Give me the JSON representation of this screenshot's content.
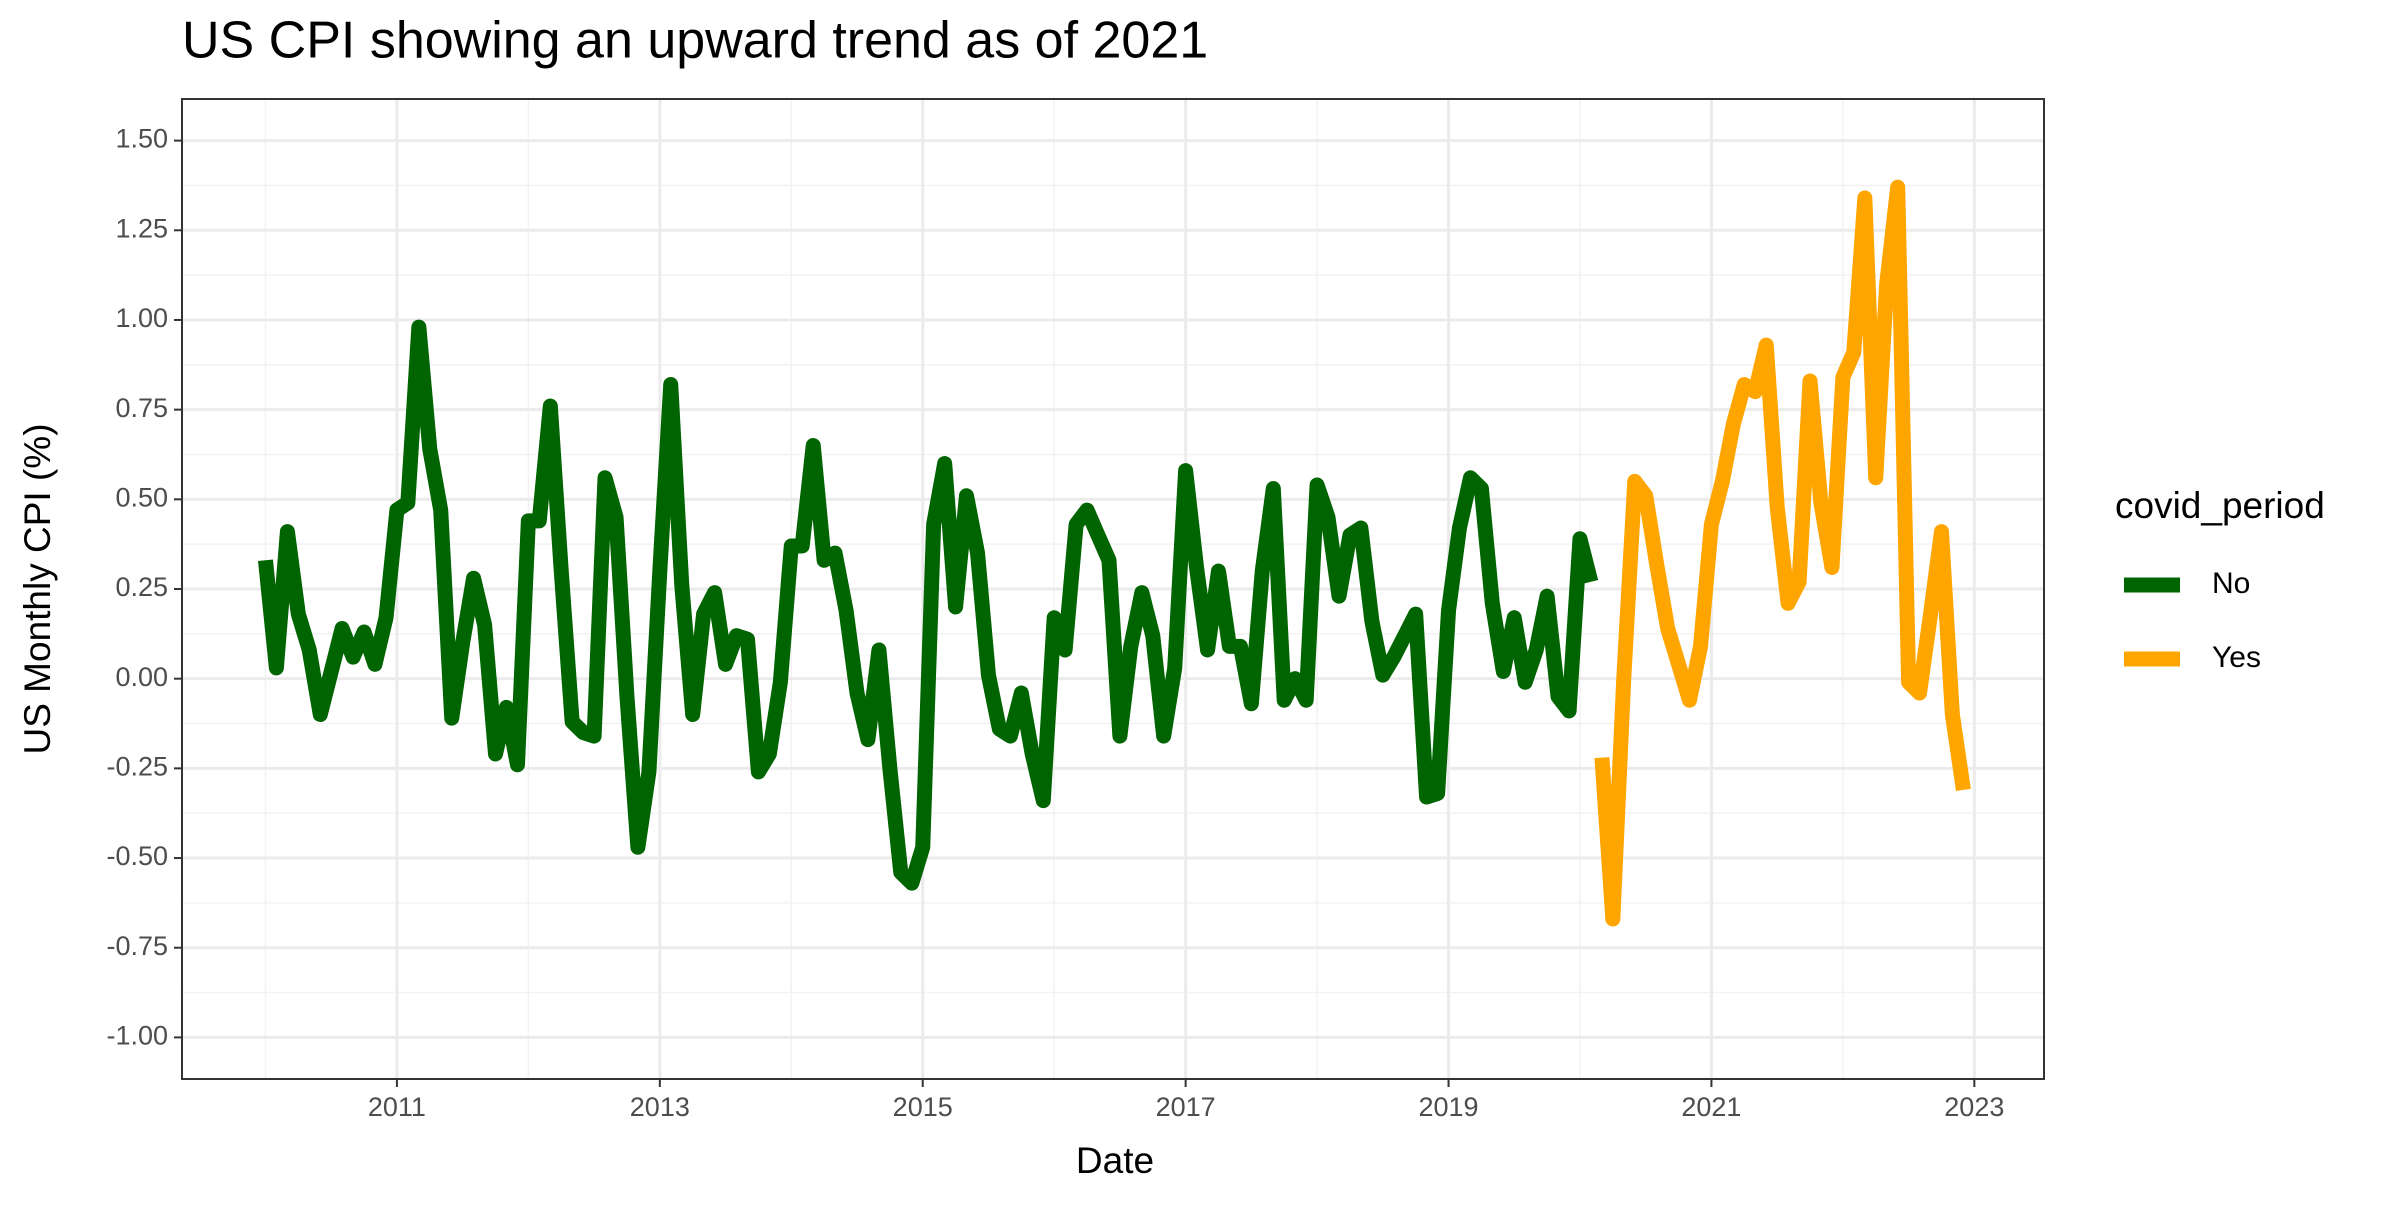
{
  "chart_data": {
    "type": "line",
    "title": "US CPI showing an upward trend as of 2021",
    "x_label": "Date",
    "y_label": "US Monthly CPI (%)",
    "legend_title": "covid_period",
    "legend": "right",
    "grid": true,
    "xlim": [
      2009.365,
      2023.53
    ],
    "xticks": [
      2011,
      2013,
      2015,
      2017,
      2019,
      2021,
      2023
    ],
    "ylim": [
      -1.116,
      1.616
    ],
    "yticks": [
      {
        "value": -1,
        "label": "-1.00"
      },
      -0.75,
      {
        "value": -0.5,
        "label": "-0.50"
      },
      -0.25,
      {
        "value": 0,
        "label": "0.00"
      },
      0.25,
      {
        "value": 0.5,
        "label": "0.50"
      },
      0.75,
      {
        "value": 1,
        "label": "1.00"
      },
      1.25,
      {
        "value": 1.5,
        "label": "1.50"
      }
    ],
    "series": [
      {
        "name": "No",
        "color": "#006400",
        "x": [
          2010,
          2010.083,
          2010.167,
          2010.25,
          2010.333,
          2010.417,
          2010.5,
          2010.583,
          2010.667,
          2010.75,
          2010.833,
          2010.917,
          2011,
          2011.083,
          2011.167,
          2011.25,
          2011.333,
          2011.417,
          2011.5,
          2011.583,
          2011.667,
          2011.75,
          2011.833,
          2011.917,
          2012,
          2012.083,
          2012.167,
          2012.25,
          2012.333,
          2012.417,
          2012.5,
          2012.583,
          2012.667,
          2012.75,
          2012.833,
          2012.917,
          2013,
          2013.083,
          2013.167,
          2013.25,
          2013.333,
          2013.417,
          2013.5,
          2013.583,
          2013.667,
          2013.75,
          2013.833,
          2013.917,
          2014,
          2014.083,
          2014.167,
          2014.25,
          2014.333,
          2014.417,
          2014.5,
          2014.583,
          2014.667,
          2014.75,
          2014.833,
          2014.917,
          2015,
          2015.083,
          2015.167,
          2015.25,
          2015.333,
          2015.417,
          2015.5,
          2015.583,
          2015.667,
          2015.75,
          2015.833,
          2015.917,
          2016,
          2016.083,
          2016.167,
          2016.25,
          2016.333,
          2016.417,
          2016.5,
          2016.583,
          2016.667,
          2016.75,
          2016.833,
          2016.917,
          2017,
          2017.083,
          2017.167,
          2017.25,
          2017.333,
          2017.417,
          2017.5,
          2017.583,
          2017.667,
          2017.75,
          2017.833,
          2017.917,
          2018,
          2018.083,
          2018.167,
          2018.25,
          2018.333,
          2018.417,
          2018.5,
          2018.583,
          2018.667,
          2018.75,
          2018.833,
          2018.917,
          2019,
          2019.083,
          2019.167,
          2019.25,
          2019.333,
          2019.417,
          2019.5,
          2019.583,
          2019.667,
          2019.75,
          2019.833,
          2019.917,
          2020,
          2020.083
        ],
        "values": [
          0.33,
          0.03,
          0.41,
          0.18,
          0.08,
          -0.1,
          0.02,
          0.14,
          0.06,
          0.13,
          0.04,
          0.17,
          0.47,
          0.49,
          0.98,
          0.64,
          0.47,
          -0.11,
          0.1,
          0.28,
          0.15,
          -0.21,
          -0.08,
          -0.24,
          0.44,
          0.44,
          0.76,
          0.3,
          -0.12,
          -0.15,
          -0.16,
          0.56,
          0.45,
          -0.05,
          -0.47,
          -0.26,
          0.3,
          0.82,
          0.26,
          -0.1,
          0.18,
          0.24,
          0.04,
          0.12,
          0.11,
          -0.26,
          -0.21,
          -0.01,
          0.37,
          0.37,
          0.65,
          0.33,
          0.35,
          0.19,
          -0.04,
          -0.17,
          0.08,
          -0.25,
          -0.54,
          -0.57,
          -0.47,
          0.43,
          0.6,
          0.2,
          0.51,
          0.35,
          0.01,
          -0.14,
          -0.16,
          -0.04,
          -0.21,
          -0.34,
          0.17,
          0.08,
          0.43,
          0.47,
          0.4,
          0.33,
          -0.16,
          0.09,
          0.24,
          0.12,
          -0.16,
          0.03,
          0.58,
          0.31,
          0.08,
          0.3,
          0.09,
          0.09,
          -0.07,
          0.3,
          0.53,
          -0.06,
          0,
          -0.06,
          0.54,
          0.45,
          0.23,
          0.4,
          0.42,
          0.16,
          0.01,
          0.06,
          0.12,
          0.18,
          -0.33,
          -0.32,
          0.19,
          0.42,
          0.56,
          0.53,
          0.21,
          0.02,
          0.17,
          -0.01,
          0.08,
          0.23,
          -0.05,
          -0.09,
          0.39,
          0.27
        ]
      },
      {
        "name": "Yes",
        "color": "#FFA500",
        "x": [
          2020.167,
          2020.25,
          2020.333,
          2020.417,
          2020.5,
          2020.583,
          2020.667,
          2020.75,
          2020.833,
          2020.917,
          2021,
          2021.083,
          2021.167,
          2021.25,
          2021.333,
          2021.417,
          2021.5,
          2021.583,
          2021.667,
          2021.75,
          2021.833,
          2021.917,
          2022,
          2022.083,
          2022.167,
          2022.25,
          2022.333,
          2022.417,
          2022.5,
          2022.583,
          2022.667,
          2022.75,
          2022.833,
          2022.917
        ],
        "values": [
          -0.22,
          -0.67,
          0,
          0.55,
          0.51,
          0.32,
          0.14,
          0.04,
          -0.06,
          0.09,
          0.43,
          0.55,
          0.71,
          0.82,
          0.8,
          0.93,
          0.48,
          0.21,
          0.27,
          0.83,
          0.49,
          0.31,
          0.84,
          0.91,
          1.34,
          0.56,
          1.1,
          1.37,
          -0.01,
          -0.04,
          0.18,
          0.41,
          -0.1,
          -0.31
        ]
      }
    ]
  }
}
